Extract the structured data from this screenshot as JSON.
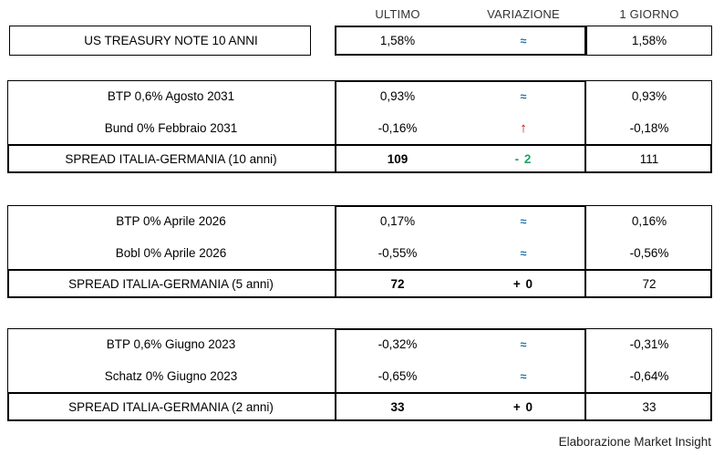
{
  "header": {
    "col_ultimo": "ULTIMO",
    "col_variazione": "VARIAZIONE",
    "col_giorno": "1 GIORNO"
  },
  "colors": {
    "steady_blue": "#2273A8",
    "up_red": "#C00000",
    "delta_green": "#21A366",
    "border_black": "#000000"
  },
  "sections": [
    {
      "name": "us-treasury",
      "rows": [
        {
          "label": "US TREASURY NOTE 10 ANNI",
          "ultimo": "1,58%",
          "variazione": "≈",
          "giorno": "1,58%"
        }
      ]
    },
    {
      "name": "italia-germania-10-anni",
      "rows": [
        {
          "label": "BTP 0,6% Agosto 2031",
          "ultimo": "0,93%",
          "variazione": "≈",
          "giorno": "0,93%"
        },
        {
          "label": "Bund 0% Febbraio 2031",
          "ultimo": "-0,16%",
          "variazione": "↑",
          "giorno": "-0,18%"
        },
        {
          "label": "SPREAD ITALIA-GERMANIA (10 anni)",
          "ultimo": "109",
          "variazione": "- 2",
          "giorno": "111"
        }
      ]
    },
    {
      "name": "italia-germania-5-anni",
      "rows": [
        {
          "label": "BTP 0% Aprile 2026",
          "ultimo": "0,17%",
          "variazione": "≈",
          "giorno": "0,16%"
        },
        {
          "label": "Bobl 0% Aprile 2026",
          "ultimo": "-0,55%",
          "variazione": "≈",
          "giorno": "-0,56%"
        },
        {
          "label": "SPREAD ITALIA-GERMANIA (5 anni)",
          "ultimo": "72",
          "variazione": "+ 0",
          "giorno": "72"
        }
      ]
    },
    {
      "name": "italia-germania-2-anni",
      "rows": [
        {
          "label": "BTP 0,6% Giugno 2023",
          "ultimo": "-0,32%",
          "variazione": "≈",
          "giorno": "-0,31%"
        },
        {
          "label": "Schatz 0% Giugno 2023",
          "ultimo": "-0,65%",
          "variazione": "≈",
          "giorno": "-0,64%"
        },
        {
          "label": "SPREAD ITALIA-GERMANIA (2 anni)",
          "ultimo": "33",
          "variazione": "+ 0",
          "giorno": "33"
        }
      ]
    }
  ],
  "footer": {
    "credit": "Elaborazione Market Insight"
  }
}
